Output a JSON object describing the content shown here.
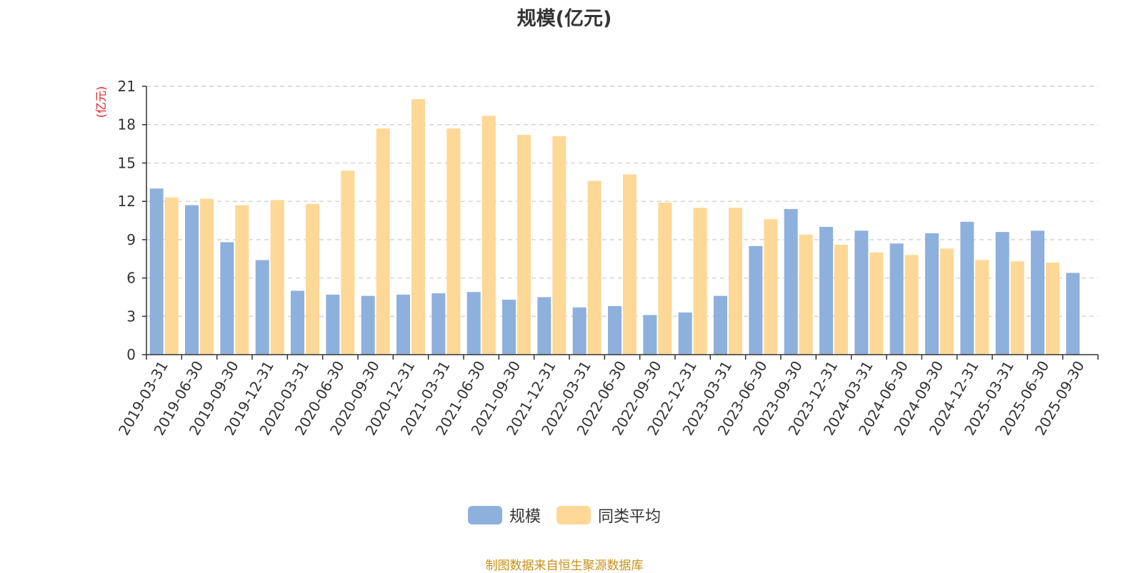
{
  "chart_data": {
    "type": "bar",
    "title": "规模(亿元)",
    "ylabel": "(亿元)",
    "ylim": [
      0,
      21
    ],
    "yticks": [
      0,
      3,
      6,
      9,
      12,
      15,
      18,
      21
    ],
    "grid": true,
    "legend_position": "bottom-center",
    "categories": [
      "2019-03-31",
      "2019-06-30",
      "2019-09-30",
      "2019-12-31",
      "2020-03-31",
      "2020-06-30",
      "2020-09-30",
      "2020-12-31",
      "2021-03-31",
      "2021-06-30",
      "2021-09-30",
      "2021-12-31",
      "2022-03-31",
      "2022-06-30",
      "2022-09-30",
      "2022-12-31",
      "2023-03-31",
      "2023-06-30",
      "2023-09-30",
      "2023-12-31",
      "2024-03-31",
      "2024-06-30",
      "2024-09-30",
      "2024-12-31",
      "2025-03-31",
      "2025-06-30",
      "2025-09-30"
    ],
    "series": [
      {
        "name": "规模",
        "color": "#8eb0dc",
        "values": [
          13.0,
          11.7,
          8.8,
          7.4,
          5.0,
          4.7,
          4.6,
          4.7,
          4.8,
          4.9,
          4.3,
          4.5,
          3.7,
          3.8,
          3.1,
          3.3,
          4.6,
          8.5,
          11.4,
          10.0,
          9.7,
          8.7,
          9.5,
          10.4,
          9.6,
          9.7,
          6.4
        ]
      },
      {
        "name": "同类平均",
        "color": "#fed896",
        "values": [
          12.3,
          12.2,
          11.7,
          12.1,
          11.8,
          14.4,
          17.7,
          20.0,
          17.7,
          18.7,
          17.2,
          17.1,
          13.6,
          14.1,
          11.9,
          11.5,
          11.5,
          10.6,
          9.4,
          8.6,
          8.0,
          7.8,
          8.3,
          7.4,
          7.3,
          7.2,
          null
        ]
      }
    ]
  },
  "footer": {
    "source": "制图数据来自恒生聚源数据库"
  }
}
